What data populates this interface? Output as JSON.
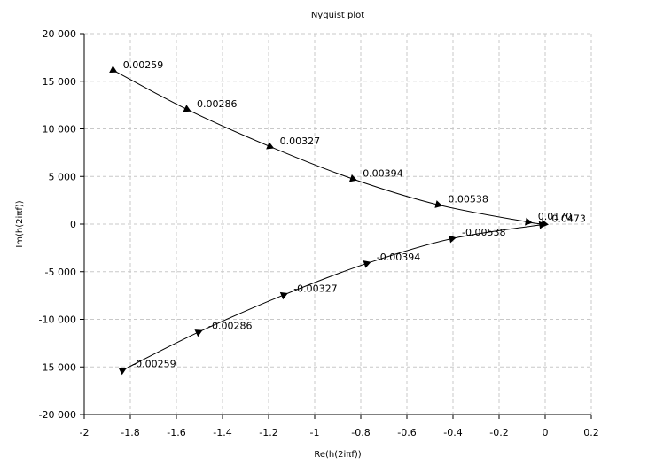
{
  "chart_data": {
    "type": "line",
    "title": "Nyquist plot",
    "xlabel": "Re(h(2iπf))",
    "ylabel": "Im(h(2iπf))",
    "xlim": [
      -2,
      0.2
    ],
    "ylim": [
      -20000,
      20000
    ],
    "grid": true,
    "x_ticks": [
      -2,
      -1.8,
      -1.6,
      -1.4,
      -1.2,
      -1,
      -0.8,
      -0.6,
      -0.4,
      -0.2,
      0,
      0.2
    ],
    "x_tick_labels": [
      "-2",
      "-1.8",
      "-1.6",
      "-1.4",
      "-1.2",
      "-1",
      "-0.8",
      "-0.6",
      "-0.4",
      "-0.2",
      "0",
      "0.2"
    ],
    "y_ticks": [
      -20000,
      -15000,
      -10000,
      -5000,
      0,
      5000,
      10000,
      15000,
      20000
    ],
    "y_tick_labels": [
      "-20 000",
      "-15 000",
      "-10 000",
      "-5 000",
      "0",
      "5 000",
      "10 000",
      "15 000",
      "20 000"
    ],
    "series": [
      {
        "color": "#000000",
        "x": [
          -1.87,
          -1.55,
          -1.19,
          -0.83,
          -0.46,
          -0.07,
          0.0
        ],
        "y": [
          16100,
          12000,
          8100,
          4700,
          2000,
          200,
          0
        ],
        "labels": [
          "0.00259",
          "0.00286",
          "0.00327",
          "0.00394",
          "0.00538",
          "0.0170",
          ""
        ]
      },
      {
        "color": "#000000",
        "x": [
          -1.83,
          -1.5,
          -1.13,
          -0.77,
          -0.4,
          -0.01
        ],
        "y": [
          -15300,
          -11300,
          -7400,
          -4100,
          -1500,
          -50
        ],
        "labels": [
          "-0.00259",
          "-0.00286",
          "-0.00327",
          "-0.00394",
          "-0.00538",
          "0.0473"
        ]
      }
    ]
  }
}
